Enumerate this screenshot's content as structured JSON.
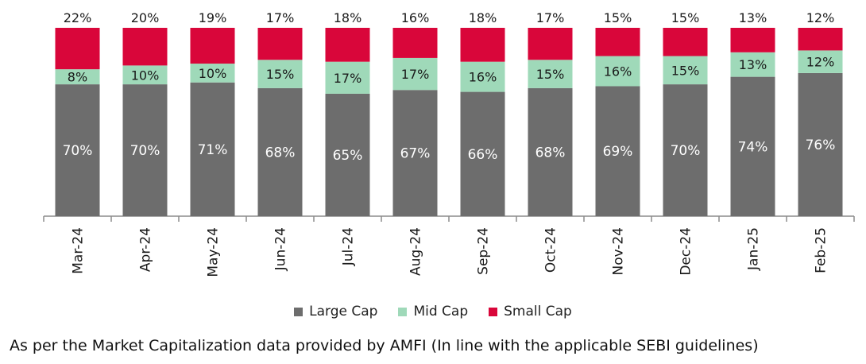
{
  "chart_data": {
    "type": "bar",
    "stacked": true,
    "categories": [
      "Mar-24",
      "Apr-24",
      "May-24",
      "Jun-24",
      "Jul-24",
      "Aug-24",
      "Sep-24",
      "Oct-24",
      "Nov-24",
      "Dec-24",
      "Jan-25",
      "Feb-25"
    ],
    "series": [
      {
        "name": "Large Cap",
        "color": "#6d6d6d",
        "values": [
          70,
          70,
          71,
          68,
          65,
          67,
          66,
          68,
          69,
          70,
          74,
          76
        ],
        "labels": [
          "70%",
          "70%",
          "71%",
          "68%",
          "65%",
          "67%",
          "66%",
          "68%",
          "69%",
          "70%",
          "74%",
          "76%"
        ]
      },
      {
        "name": "Mid Cap",
        "color": "#9fd9b9",
        "values": [
          8,
          10,
          10,
          15,
          17,
          17,
          16,
          15,
          16,
          15,
          13,
          12
        ],
        "labels": [
          "8%",
          "10%",
          "10%",
          "15%",
          "17%",
          "17%",
          "16%",
          "15%",
          "16%",
          "15%",
          "13%",
          "12%"
        ]
      },
      {
        "name": "Small Cap",
        "color": "#d9063a",
        "values": [
          22,
          20,
          19,
          17,
          18,
          16,
          18,
          17,
          15,
          15,
          13,
          12
        ],
        "labels": [
          "22%",
          "20%",
          "19%",
          "17%",
          "18%",
          "16%",
          "18%",
          "17%",
          "15%",
          "15%",
          "13%",
          "12%"
        ]
      }
    ],
    "ylim": [
      0,
      100
    ],
    "grid": false,
    "legend": "bottom"
  },
  "note": "As per the Market Capitalization data provided by AMFI (In line with the applicable SEBI guidelines)"
}
